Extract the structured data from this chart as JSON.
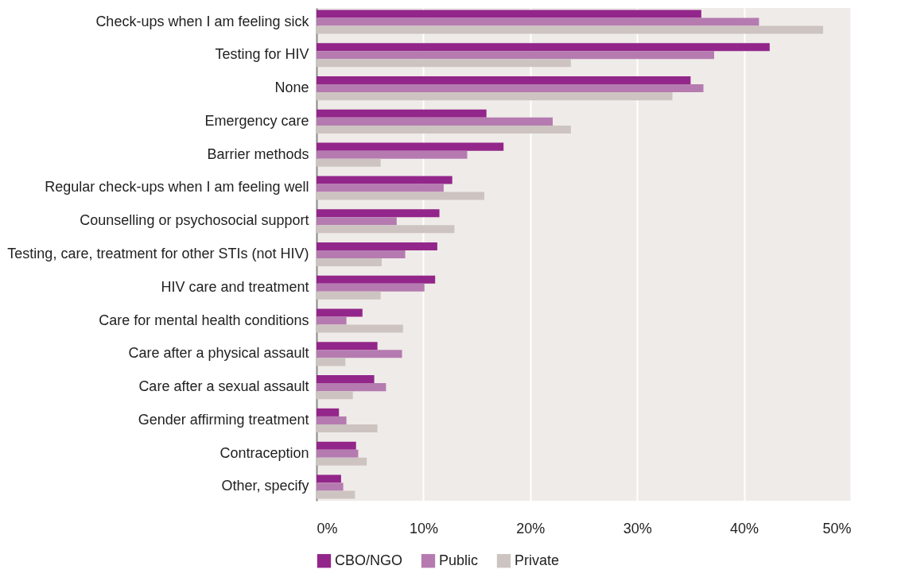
{
  "chart_data": {
    "type": "bar",
    "orientation": "horizontal",
    "categories": [
      "Check-ups when I am feeling sick",
      "Testing for HIV",
      "None",
      "Emergency care",
      "Barrier methods",
      "Regular check-ups when I am feeling well",
      "Counselling or psychosocial support",
      "Testing, care, treatment for other STIs (not HIV)",
      "HIV care and treatment",
      "Care for mental health conditions",
      "Care after a physical assault",
      "Care after a sexual assault",
      "Gender affirming treatment",
      "Contraception",
      "Other, specify"
    ],
    "series": [
      {
        "name": "CBO/NGO",
        "color": "#93268a",
        "values": [
          36.0,
          42.4,
          35.0,
          15.9,
          17.5,
          12.7,
          11.5,
          11.3,
          11.1,
          4.3,
          5.7,
          5.4,
          2.1,
          3.7,
          2.3
        ]
      },
      {
        "name": "Public",
        "color": "#b57bb0",
        "values": [
          41.4,
          37.2,
          36.2,
          22.1,
          14.1,
          11.9,
          7.5,
          8.3,
          10.1,
          2.8,
          8.0,
          6.5,
          2.8,
          3.9,
          2.5
        ]
      },
      {
        "name": "Private",
        "color": "#cdc4c1",
        "values": [
          47.4,
          23.8,
          33.3,
          23.8,
          6.0,
          15.7,
          12.9,
          6.1,
          6.0,
          8.1,
          2.7,
          3.4,
          5.7,
          4.7,
          3.6
        ]
      }
    ],
    "xlim": [
      0,
      50
    ],
    "xticks": [
      {
        "value": 0,
        "label": "0%"
      },
      {
        "value": 10,
        "label": "10%"
      },
      {
        "value": 20,
        "label": "20%"
      },
      {
        "value": 30,
        "label": "30%"
      },
      {
        "value": 40,
        "label": "40%"
      },
      {
        "value": 50,
        "label": "50%"
      }
    ],
    "grid": "x",
    "legend": "bottom"
  }
}
